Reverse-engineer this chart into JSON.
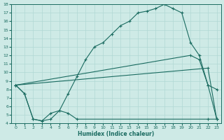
{
  "xlabel": "Humidex (Indice chaleur)",
  "xlim": [
    -0.5,
    23.5
  ],
  "ylim": [
    4,
    18
  ],
  "xticks": [
    0,
    1,
    2,
    3,
    4,
    5,
    6,
    7,
    8,
    9,
    10,
    11,
    12,
    13,
    14,
    15,
    16,
    17,
    18,
    19,
    20,
    21,
    22,
    23
  ],
  "yticks": [
    4,
    5,
    6,
    7,
    8,
    9,
    10,
    11,
    12,
    13,
    14,
    15,
    16,
    17,
    18
  ],
  "bg_color": "#ceeae6",
  "grid_color": "#b0d8d4",
  "line_color": "#1a6b60",
  "marker": "+",
  "line_series": [
    {
      "x": [
        0,
        1,
        2,
        3,
        4,
        5,
        6,
        7,
        8,
        9,
        10,
        11,
        12,
        13,
        14,
        15,
        16,
        17,
        18,
        19,
        20,
        21,
        22,
        23
      ],
      "y": [
        8.5,
        7.5,
        4.5,
        4.3,
        4.5,
        5.5,
        7.5,
        9.5,
        11.5,
        13.0,
        13.5,
        14.5,
        15.5,
        16.0,
        17.0,
        17.2,
        17.5,
        18.0,
        17.5,
        17.0,
        13.5,
        12.0,
        8.5,
        8.0
      ],
      "has_markers": true
    },
    {
      "x": [
        0,
        20,
        21,
        22,
        23
      ],
      "y": [
        8.5,
        12.0,
        11.5,
        8.5,
        4.5
      ],
      "has_markers": true
    },
    {
      "x": [
        0,
        22,
        23
      ],
      "y": [
        8.5,
        10.5,
        4.5
      ],
      "has_markers": true
    },
    {
      "x": [
        0,
        1,
        2,
        3,
        4,
        5,
        6,
        7,
        22,
        23
      ],
      "y": [
        8.5,
        7.5,
        4.5,
        4.3,
        5.2,
        5.5,
        5.2,
        4.5,
        4.5,
        4.5
      ],
      "has_markers": true
    }
  ]
}
